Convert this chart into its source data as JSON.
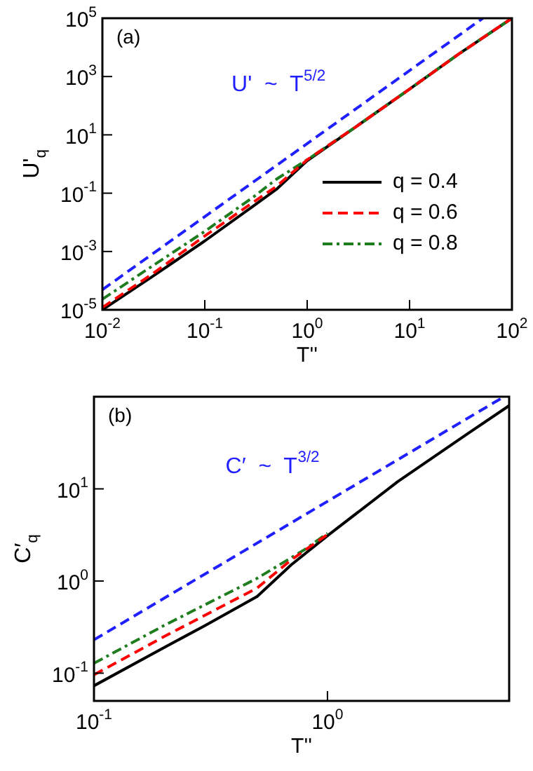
{
  "chart_data": [
    {
      "type": "line",
      "title": "(a)",
      "xlabel": "T''",
      "ylabel": "U'$_{q}$",
      "log": "xy",
      "xlim": [
        0.01,
        100
      ],
      "ylim": [
        1e-05,
        100000.0
      ],
      "xticks": [
        {
          "value": 0.01,
          "label": "10$^{-2}$"
        },
        {
          "value": 0.1,
          "label": "10$^{-1}$"
        },
        {
          "value": 1,
          "label": "10$^{0}$"
        },
        {
          "value": 10,
          "label": "10$^{1}$"
        },
        {
          "value": 100,
          "label": "10$^{2}$"
        }
      ],
      "yticks": [
        {
          "value": 1e-05,
          "label": "10$^{-5}$"
        },
        {
          "value": 0.001,
          "label": "10$^{-3}$"
        },
        {
          "value": 0.1,
          "label": "10$^{-1}$"
        },
        {
          "value": 10,
          "label": "10$^{1}$"
        },
        {
          "value": 1000,
          "label": "10$^{3}$"
        },
        {
          "value": 100000,
          "label": "10$^{5}$"
        }
      ],
      "legend": "right",
      "grid": false,
      "annotations": [
        "U'  ~  T$^{5/2}$"
      ],
      "series": [
        {
          "name": "q = 0.4",
          "color": "#000000",
          "line_style": "solid",
          "x": [
            0.01,
            0.03,
            0.1,
            0.3,
            0.5,
            1,
            3,
            10,
            30,
            100
          ],
          "values": [
            1e-05,
            0.00013,
            0.0023,
            0.037,
            0.135,
            1.3,
            19,
            370,
            5800,
            100000
          ]
        },
        {
          "name": "q = 0.6",
          "color": "#ff0000",
          "line_style": "dashed",
          "x": [
            0.01,
            0.03,
            0.1,
            0.3,
            0.5,
            1,
            3,
            10,
            30,
            100
          ],
          "values": [
            1.2e-05,
            0.00016,
            0.0034,
            0.05,
            0.17,
            1.4,
            19,
            370,
            5800,
            100000
          ]
        },
        {
          "name": "q = 0.8",
          "color": "#1e7d1e",
          "line_style": "dotted",
          "x": [
            0.01,
            0.03,
            0.1,
            0.3,
            0.5,
            1,
            3,
            10,
            30,
            100
          ],
          "values": [
            2.3e-05,
            0.0003,
            0.0049,
            0.075,
            0.3,
            1.4,
            19,
            370,
            5800,
            100000
          ]
        },
        {
          "color": "#1f1fff",
          "line_style": "dashed",
          "x": [
            0.01,
            52
          ],
          "values": [
            4.9e-05,
            100000
          ]
        }
      ]
    },
    {
      "type": "line",
      "title": "(b)",
      "xlabel": "T''",
      "ylabel": "C′$_{q}$",
      "log": "xy",
      "xlim": [
        0.1,
        6
      ],
      "ylim": [
        0.05,
        100
      ],
      "xticks": [
        {
          "value": 0.1,
          "label": "10$^{-1}$"
        },
        {
          "value": 1,
          "label": "10$^{0}$"
        }
      ],
      "yticks": [
        {
          "value": 0.1,
          "label": "10$^{-1}$"
        },
        {
          "value": 1,
          "label": "10$^{0}$"
        },
        {
          "value": 10,
          "label": "10$^{1}$"
        }
      ],
      "grid": false,
      "annotations": [
        "C′  ~  T$^{3/2}$"
      ],
      "series": [
        {
          "color": "#000000",
          "line_style": "solid",
          "x": [
            0.1,
            0.2,
            0.3,
            0.5,
            0.7,
            1,
            2,
            4,
            6
          ],
          "values": [
            0.073,
            0.19,
            0.33,
            0.68,
            1.5,
            3.1,
            12,
            40,
            80
          ]
        },
        {
          "color": "#ff0000",
          "line_style": "dashed",
          "x": [
            0.1,
            0.2,
            0.5,
            0.7,
            1
          ],
          "values": [
            0.096,
            0.25,
            0.84,
            1.7,
            3.2
          ]
        },
        {
          "color": "#1e7d1e",
          "line_style": "dotted",
          "x": [
            0.1,
            0.2,
            0.5,
            0.8,
            1
          ],
          "values": [
            0.128,
            0.33,
            1.07,
            2.2,
            3.3
          ]
        },
        {
          "color": "#1f1fff",
          "line_style": "dashed",
          "x": [
            0.1,
            5.7
          ],
          "values": [
            0.23,
            100
          ]
        }
      ]
    }
  ]
}
